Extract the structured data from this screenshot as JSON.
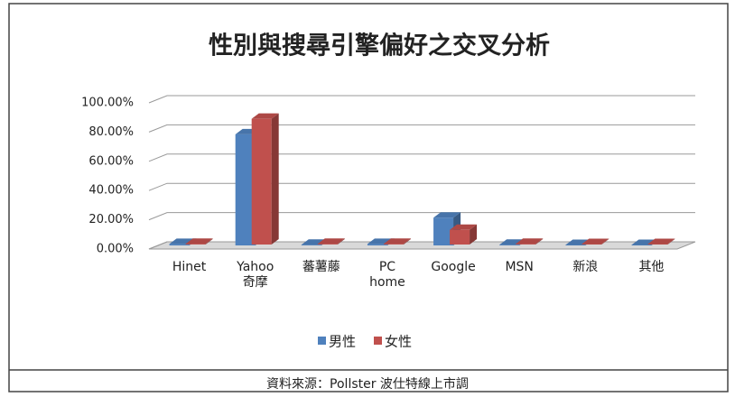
{
  "chart_data": {
    "type": "bar3d",
    "title": "性別與搜尋引擎偏好之交叉分析",
    "categories": [
      "Hinet",
      "Yahoo\n奇摩",
      "蕃薯藤",
      "PC\nhome",
      "Google",
      "MSN",
      "新浪",
      "其他"
    ],
    "series": [
      {
        "name": "男性",
        "color": "#4f81bd",
        "values": [
          1,
          76,
          0.5,
          1,
          19,
          0.5,
          0.3,
          0.3
        ]
      },
      {
        "name": "女性",
        "color": "#c0504d",
        "values": [
          0.5,
          86,
          0.5,
          0.5,
          10,
          0.5,
          0.3,
          0.3
        ]
      }
    ],
    "ylim": [
      0,
      100
    ],
    "yticks": [
      {
        "value": 0,
        "label": "0.00%"
      },
      {
        "value": 20,
        "label": "20.00%"
      },
      {
        "value": 40,
        "label": "40.00%"
      },
      {
        "value": 60,
        "label": "60.00%"
      },
      {
        "value": 80,
        "label": "80.00%"
      },
      {
        "value": 100,
        "label": "100.00%"
      }
    ],
    "grid": true,
    "legend": "bottom",
    "source": "資料來源：Pollster 波仕特線上市調"
  }
}
